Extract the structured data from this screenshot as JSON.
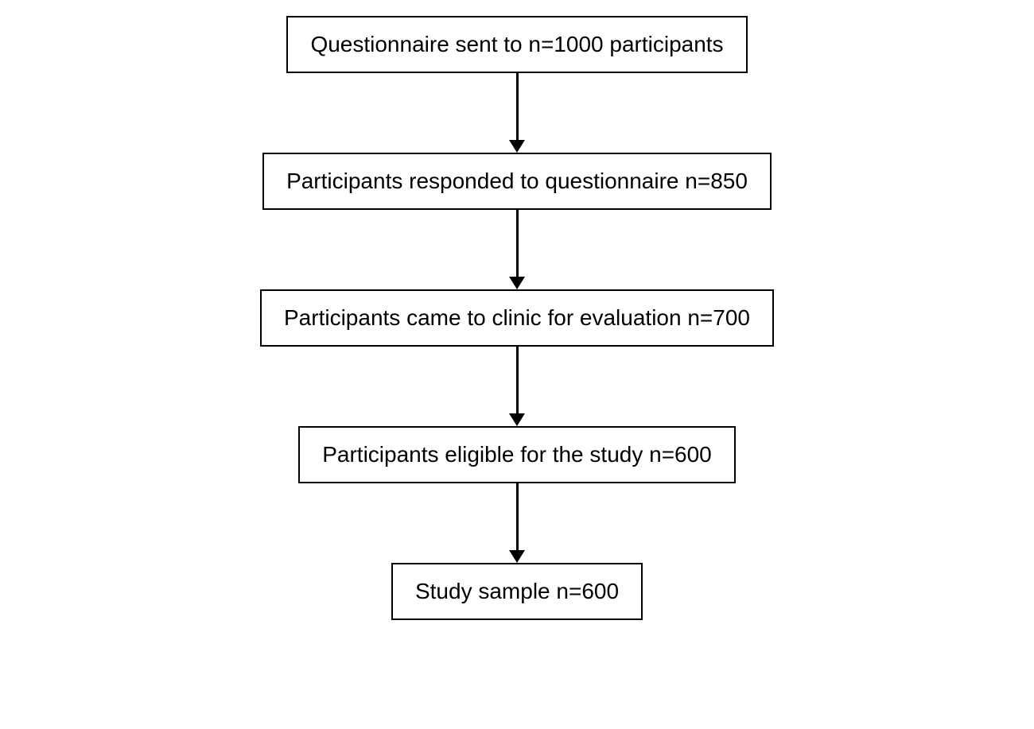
{
  "flowchart": {
    "type": "flowchart",
    "orientation": "vertical",
    "background_color": "#ffffff",
    "node_border_color": "#000000",
    "node_border_width": 2,
    "node_fill_color": "#ffffff",
    "node_text_color": "#000000",
    "node_fontsize": 28,
    "arrow_color": "#000000",
    "arrow_line_width": 3,
    "arrow_head_size": 16,
    "arrow_length": 100,
    "nodes": [
      {
        "id": "n1",
        "label": "Questionnaire sent to n=1000 participants"
      },
      {
        "id": "n2",
        "label": "Participants responded to questionnaire n=850"
      },
      {
        "id": "n3",
        "label": "Participants came to clinic for evaluation n=700"
      },
      {
        "id": "n4",
        "label": "Participants eligible for the study n=600"
      },
      {
        "id": "n5",
        "label": "Study sample n=600"
      }
    ],
    "edges": [
      {
        "from": "n1",
        "to": "n2"
      },
      {
        "from": "n2",
        "to": "n3"
      },
      {
        "from": "n3",
        "to": "n4"
      },
      {
        "from": "n4",
        "to": "n5"
      }
    ]
  }
}
